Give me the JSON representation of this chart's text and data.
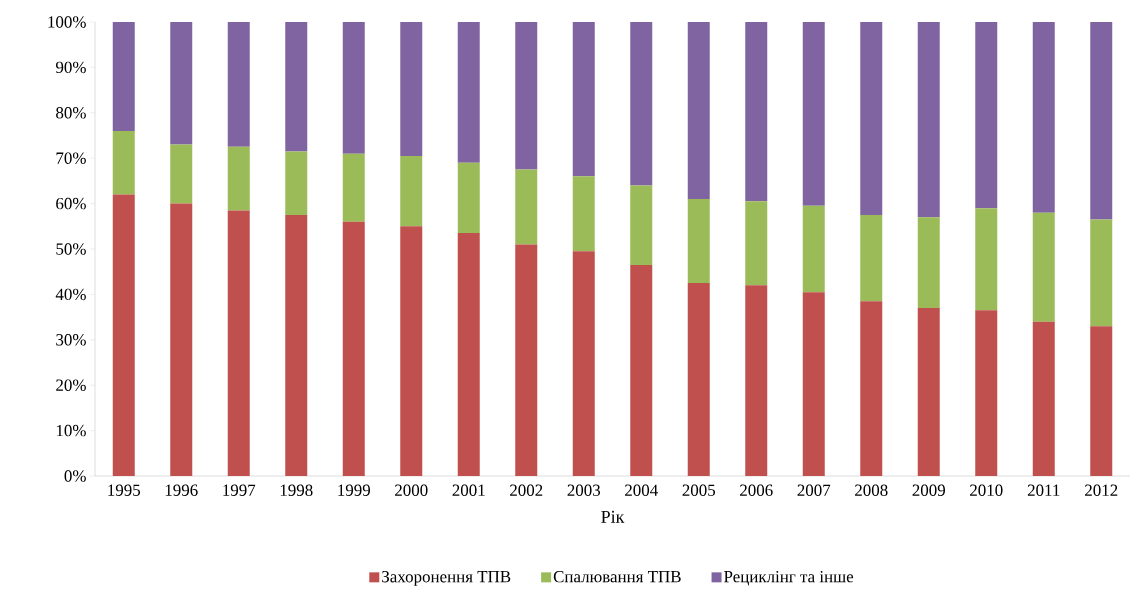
{
  "chart_data": {
    "type": "bar",
    "stacked": true,
    "xlabel": "Рік",
    "categories": [
      "1995",
      "1996",
      "1997",
      "1998",
      "1999",
      "2000",
      "2001",
      "2002",
      "2003",
      "2004",
      "2005",
      "2006",
      "2007",
      "2008",
      "2009",
      "2010",
      "2011",
      "2012"
    ],
    "series": [
      {
        "name": "Захоронення ТПВ",
        "color": "#c0504d",
        "values": [
          62,
          60,
          58.5,
          57.5,
          56,
          55,
          53.5,
          51,
          49.5,
          46.5,
          42.5,
          42,
          40.5,
          38.5,
          37,
          36.5,
          34,
          33
        ]
      },
      {
        "name": "Спалювання ТПВ",
        "color": "#9bbb59",
        "values": [
          14,
          13,
          14,
          14,
          15,
          15.5,
          15.5,
          16.5,
          16.5,
          17.5,
          18.5,
          18.5,
          19,
          19,
          20,
          22.5,
          24,
          23.5
        ]
      },
      {
        "name": "Рециклінг та інше",
        "color": "#8064a2",
        "values": [
          24,
          27,
          27.5,
          28.5,
          29,
          29.5,
          31,
          32.5,
          34,
          36,
          39,
          39.5,
          40.5,
          42.5,
          43,
          41,
          42,
          43.5
        ]
      }
    ],
    "ylim": [
      0,
      100
    ],
    "yticks": [
      {
        "value": 0,
        "label": "0%"
      },
      {
        "value": 10,
        "label": "10%"
      },
      {
        "value": 20,
        "label": "20%"
      },
      {
        "value": 30,
        "label": "30%"
      },
      {
        "value": 40,
        "label": "40%"
      },
      {
        "value": 50,
        "label": "50%"
      },
      {
        "value": 60,
        "label": "60%"
      },
      {
        "value": 70,
        "label": "70%"
      },
      {
        "value": 80,
        "label": "80%"
      },
      {
        "value": 90,
        "label": "90%"
      },
      {
        "value": 100,
        "label": "100%"
      }
    ],
    "legend": "bottom"
  }
}
